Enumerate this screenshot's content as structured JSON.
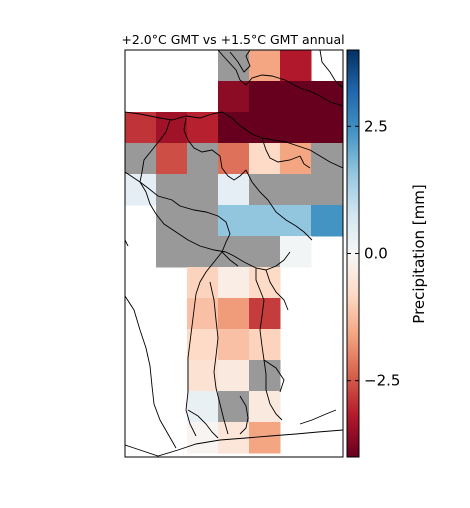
{
  "chart_data": {
    "type": "heatmap",
    "title": "+2.0°C GMT vs +1.5°C GMT annual",
    "colorbar": {
      "label": "Precipitation [mm]",
      "range": [
        -4.0,
        4.0
      ],
      "ticks": [
        2.5,
        0.0,
        -2.5
      ],
      "tick_labels": [
        "2.5",
        "0.0",
        "−2.5"
      ],
      "colormap": "RdBu",
      "colors": [
        "#67001f",
        "#b2182b",
        "#d6604d",
        "#f4a582",
        "#fddbc7",
        "#f7f7f7",
        "#d1e5f0",
        "#92c5de",
        "#4393c3",
        "#2166ac",
        "#053061"
      ]
    },
    "masked_color": "#999999",
    "grid": {
      "columns": 7,
      "rows": 13
    },
    "cells": [
      [
        null,
        null,
        null,
        "M",
        -1.6,
        -3.2,
        null
      ],
      [
        null,
        null,
        null,
        -3.6,
        -4.0,
        -4.0,
        -4.0
      ],
      [
        -2.9,
        -3.4,
        -3.1,
        -4.0,
        -4.0,
        -4.0,
        -4.0
      ],
      [
        "M",
        -2.6,
        "M",
        -2.2,
        -0.8,
        -1.6,
        "M"
      ],
      [
        0.4,
        "M",
        "M",
        0.4,
        "M",
        "M",
        "M"
      ],
      [
        null,
        "M",
        "M",
        1.6,
        1.6,
        1.6,
        2.4
      ],
      [
        null,
        "M",
        "M",
        "M",
        "M",
        0.1,
        null
      ],
      [
        null,
        null,
        -0.9,
        -0.3,
        -0.8,
        null,
        null
      ],
      [
        null,
        null,
        -1.2,
        -1.7,
        -2.8,
        null,
        null
      ],
      [
        null,
        null,
        -0.8,
        -1.2,
        -0.9,
        null,
        null
      ],
      [
        null,
        null,
        -0.6,
        -0.4,
        "M",
        null,
        null
      ],
      [
        null,
        null,
        0.3,
        "M",
        -0.4,
        null,
        null
      ],
      [
        null,
        null,
        -0.1,
        -0.5,
        -1.6,
        null,
        null
      ]
    ]
  }
}
